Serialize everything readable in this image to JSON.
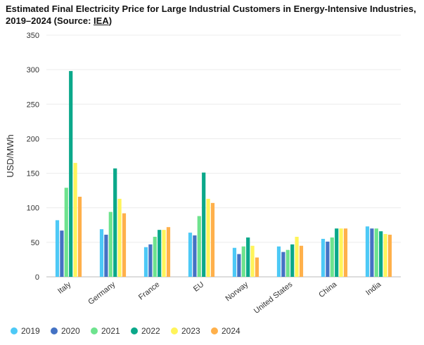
{
  "chart_data": {
    "type": "bar",
    "title_main": "Estimated Final Electricity Price for Large Industrial Customers in Energy-Intensive Industries, 2019–2024 (Source: ",
    "title_source": "IEA",
    "title_close": ")",
    "ylabel": "USD/MWh",
    "xlabel": "",
    "ylim": [
      0,
      350
    ],
    "yticks": [
      0,
      50,
      100,
      150,
      200,
      250,
      300,
      350
    ],
    "grid": true,
    "legend_position": "bottom",
    "categories": [
      "Italy",
      "Germany",
      "France",
      "EU",
      "Norway",
      "United States",
      "China",
      "India"
    ],
    "series": [
      {
        "name": "2019",
        "color": "#4dc9f6",
        "values": [
          82,
          69,
          43,
          64,
          42,
          44,
          55,
          73
        ]
      },
      {
        "name": "2020",
        "color": "#4472c4",
        "values": [
          67,
          61,
          47,
          60,
          33,
          36,
          51,
          70
        ]
      },
      {
        "name": "2021",
        "color": "#6ee38e",
        "values": [
          129,
          94,
          58,
          88,
          44,
          39,
          57,
          70
        ]
      },
      {
        "name": "2022",
        "color": "#0aa88a",
        "values": [
          298,
          157,
          68,
          151,
          57,
          47,
          70,
          66
        ]
      },
      {
        "name": "2023",
        "color": "#fff45a",
        "values": [
          165,
          113,
          68,
          113,
          45,
          58,
          70,
          62
        ]
      },
      {
        "name": "2024",
        "color": "#ffb04a",
        "values": [
          116,
          92,
          72,
          107,
          28,
          45,
          70,
          61
        ]
      }
    ]
  }
}
